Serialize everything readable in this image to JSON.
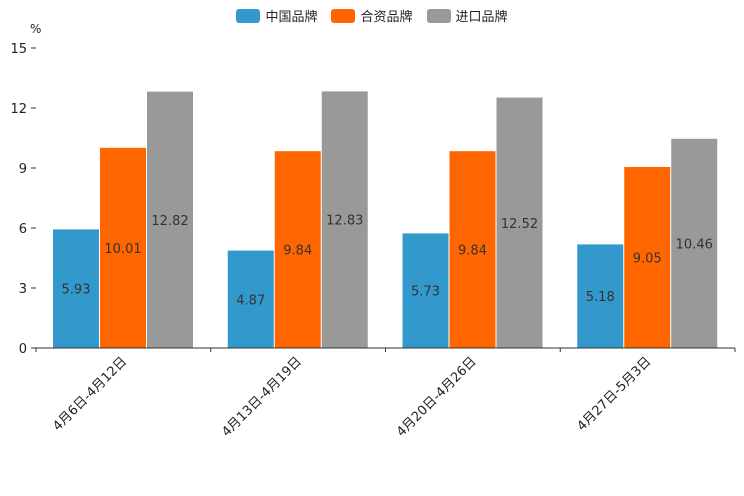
{
  "chart_data": {
    "type": "bar",
    "unit_label": "%",
    "categories": [
      "4月6日-4月12日",
      "4月13日-4月19日",
      "4月20日-4月26日",
      "4月27日-5月3日"
    ],
    "series": [
      {
        "name": "中国品牌",
        "color": "#3399cc",
        "values": [
          5.93,
          4.87,
          5.73,
          5.18
        ]
      },
      {
        "name": "合资品牌",
        "color": "#ff6600",
        "values": [
          10.01,
          9.84,
          9.84,
          9.05
        ]
      },
      {
        "name": "进口品牌",
        "color": "#999999",
        "values": [
          12.82,
          12.83,
          12.52,
          10.46
        ]
      }
    ],
    "yticks": [
      0,
      3,
      6,
      9,
      12,
      15
    ],
    "ylim": [
      0,
      15
    ],
    "legend_position": "top-center",
    "grid": false
  }
}
